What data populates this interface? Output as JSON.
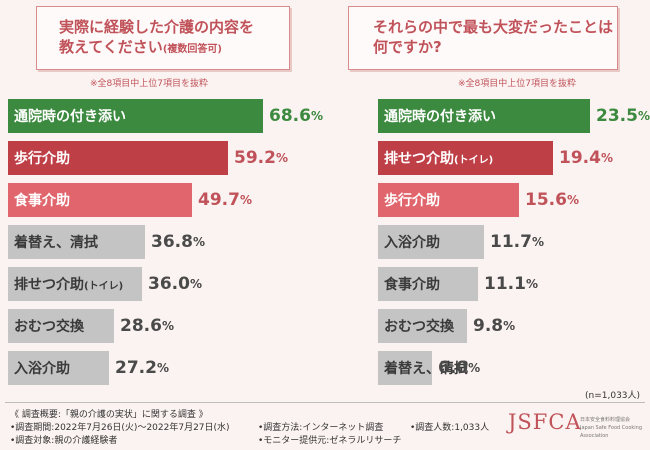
{
  "colors": {
    "green": "#3c8a3f",
    "red_dark": "#bf3f47",
    "red_light": "#e0656c",
    "gray": "#c4c4c4",
    "accent": "#c0535a"
  },
  "left": {
    "title_line1": "実際に経験した介護の内容を",
    "title_line2": "教えてください",
    "title_note": "(複数回答可)",
    "footnote": "※全8項目中上位7項目を抜粋"
  },
  "right": {
    "title_line1": "それらの中で最も大変だったことは",
    "title_line2": "何ですか?",
    "footnote": "※全8項目中上位7項目を抜粋"
  },
  "chart_data": [
    {
      "type": "bar",
      "orientation": "horizontal",
      "title": "実際に経験した介護の内容を教えてください(複数回答可)",
      "unit": "%",
      "categories": [
        "通院時の付き添い",
        "歩行介助",
        "食事介助",
        "着替え、清拭",
        "排せつ介助(トイレ)",
        "おむつ交換",
        "入浴介助"
      ],
      "labels": [
        {
          "main": "通院時の付き添い",
          "sub": ""
        },
        {
          "main": "歩行介助",
          "sub": ""
        },
        {
          "main": "食事介助",
          "sub": ""
        },
        {
          "main": "着替え、清拭",
          "sub": ""
        },
        {
          "main": "排せつ介助",
          "sub": "(トイレ)"
        },
        {
          "main": "おむつ交換",
          "sub": ""
        },
        {
          "main": "入浴介助",
          "sub": ""
        }
      ],
      "values": [
        68.6,
        59.2,
        49.7,
        36.8,
        36.0,
        28.6,
        27.2
      ],
      "value_text": [
        "68.6",
        "59.2",
        "49.7",
        "36.8",
        "36.0",
        "28.6",
        "27.2"
      ],
      "styles": [
        "green",
        "red_dark",
        "red_light",
        "gray",
        "gray",
        "gray",
        "gray"
      ],
      "xlim": [
        0,
        100
      ]
    },
    {
      "type": "bar",
      "orientation": "horizontal",
      "title": "それらの中で最も大変だったことは何ですか?",
      "unit": "%",
      "categories": [
        "通院時の付き添い",
        "排せつ介助(トイレ)",
        "歩行介助",
        "入浴介助",
        "食事介助",
        "おむつ交換",
        "着替え、清拭"
      ],
      "labels": [
        {
          "main": "通院時の付き添い",
          "sub": ""
        },
        {
          "main": "排せつ介助",
          "sub": "(トイレ)"
        },
        {
          "main": "歩行介助",
          "sub": ""
        },
        {
          "main": "入浴介助",
          "sub": ""
        },
        {
          "main": "食事介助",
          "sub": ""
        },
        {
          "main": "おむつ交換",
          "sub": ""
        },
        {
          "main": "着替え、清拭",
          "sub": ""
        }
      ],
      "values": [
        23.5,
        19.4,
        15.6,
        11.7,
        11.1,
        9.8,
        6.0
      ],
      "value_text": [
        "23.5",
        "19.4",
        "15.6",
        "11.7",
        "11.1",
        "9.8",
        "6.0"
      ],
      "styles": [
        "green",
        "red_dark",
        "red_light",
        "gray",
        "gray",
        "gray",
        "gray"
      ],
      "xlim": [
        0,
        25
      ],
      "sample_size": "(n=1,033人)"
    }
  ],
  "footer": {
    "survey_title": "《 調査概要:「親の介護の実状」に関する調査 》",
    "period": "•調査期間:2022年7月26日(火)〜2022年7月27日(水)",
    "subjects": "•調査対象:親の介護経験者",
    "method": "•調査方法:インターネット調査",
    "provider": "•モニター提供元:ゼネラルリサーチ",
    "respondents": "•調査人数:1,033人",
    "logo": "JSFCA",
    "logo_sub1": "日本安全食料料理協会",
    "logo_sub2": "Japan Safe Food Cooking Association"
  }
}
